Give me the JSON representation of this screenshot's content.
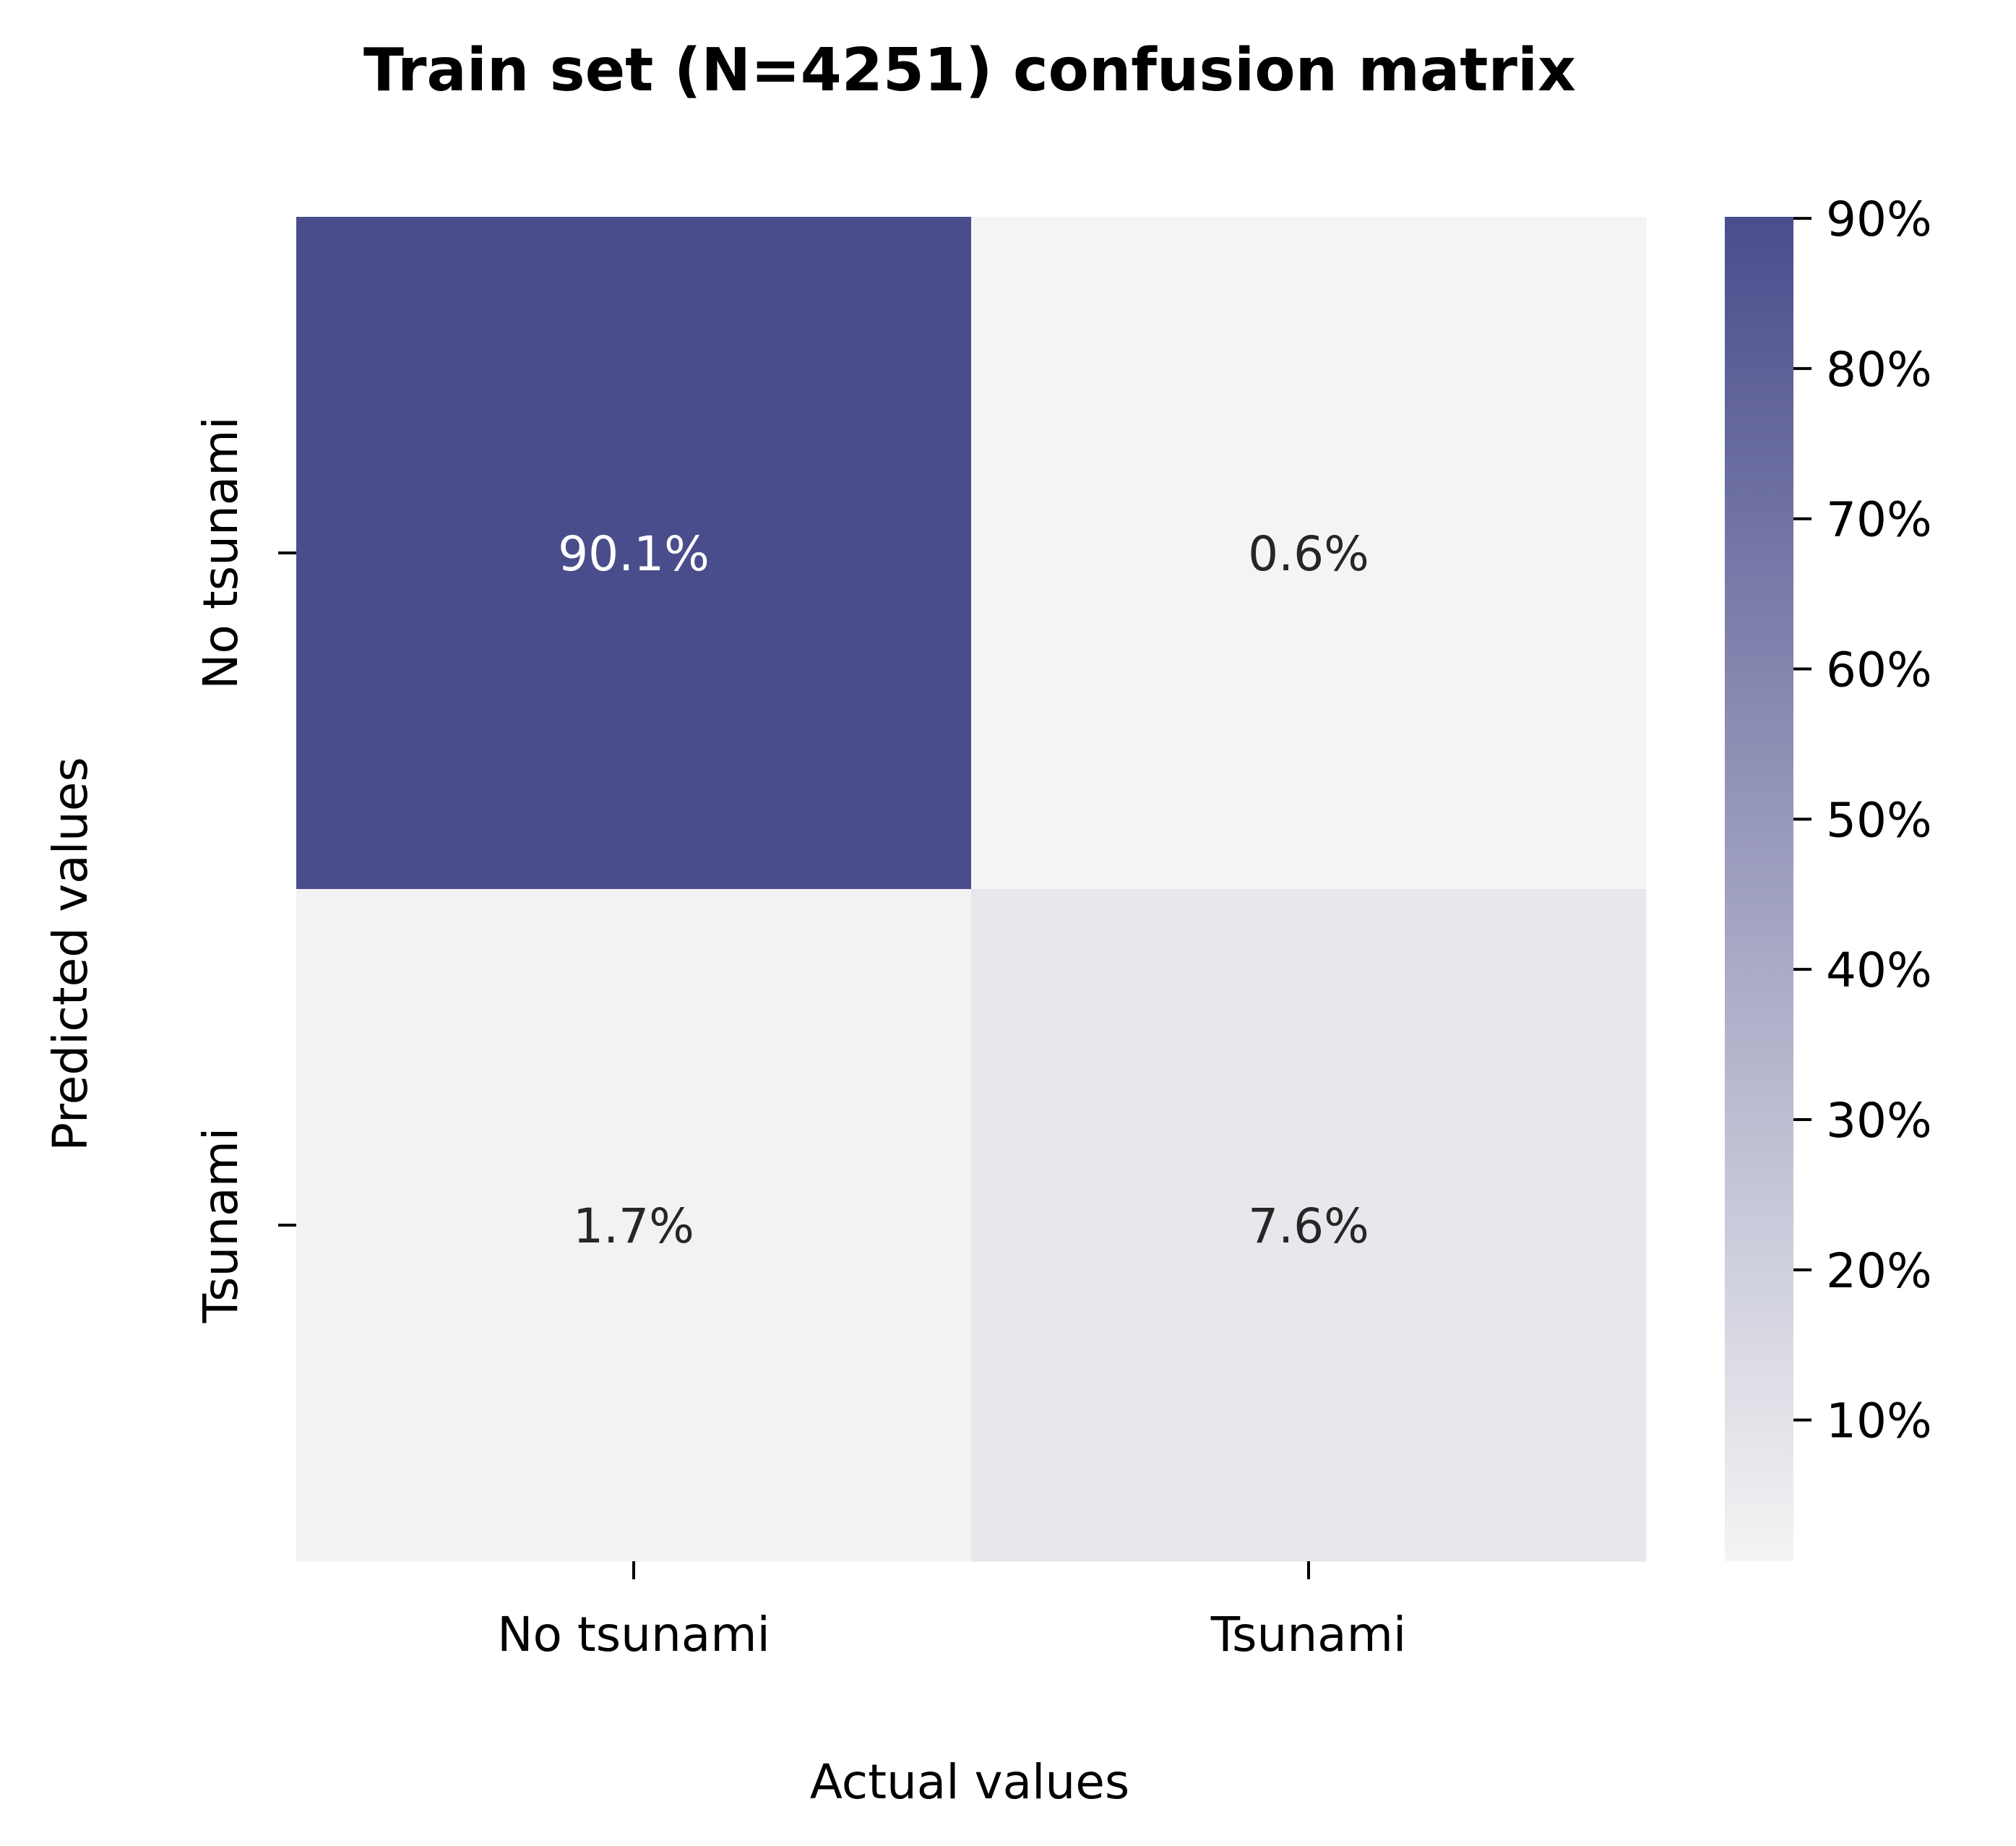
{
  "chart_data": {
    "type": "heatmap",
    "title": "Train set (N=4251) confusion matrix",
    "xlabel": "Actual values",
    "ylabel": "Predicted values",
    "x_categories": [
      "No tsunami",
      "Tsunami"
    ],
    "y_categories": [
      "No tsunami",
      "Tsunami"
    ],
    "values": [
      [
        90.1,
        0.6
      ],
      [
        1.7,
        7.6
      ]
    ],
    "cell_labels": [
      [
        "90.1%",
        "0.6%"
      ],
      [
        "1.7%",
        "7.6%"
      ]
    ],
    "value_unit": "%",
    "colorbar": {
      "range": [
        0.6,
        90.1
      ],
      "ticks": [
        10,
        20,
        30,
        40,
        50,
        60,
        70,
        80,
        90
      ],
      "tick_labels": [
        "10%",
        "20%",
        "30%",
        "40%",
        "50%",
        "60%",
        "70%",
        "80%",
        "90%"
      ],
      "color_low": "#f4f4f4",
      "color_high": "#4a4d8c"
    },
    "colors": {
      "dark_text": "#262626",
      "light_text": "#ffffff"
    },
    "grid": false,
    "legend": "colorbar-right"
  }
}
